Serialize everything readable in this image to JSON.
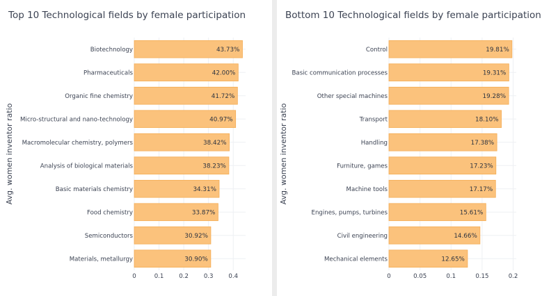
{
  "chart_data": [
    {
      "type": "bar",
      "orientation": "horizontal",
      "title": "Top 10 Technological fields by female participation",
      "ylabel": "Avg. women inventor ratio",
      "xlim": [
        0,
        0.45
      ],
      "xticks": [
        "0",
        "0.1",
        "0.2",
        "0.3",
        "0.4"
      ],
      "xtick_values": [
        0,
        0.1,
        0.2,
        0.3,
        0.4
      ],
      "grid": true,
      "bar_color": "#fbc27c",
      "bar_edge_color": "#f4ac55",
      "categories": [
        "Biotechnology",
        "Pharmaceuticals",
        "Organic fine chemistry",
        "Micro-structural and nano-technology",
        "Macromolecular chemistry, polymers",
        "Analysis of biological materials",
        "Basic materials chemistry",
        "Food chemistry",
        "Semiconductors",
        "Materials, metallurgy"
      ],
      "values": [
        0.4373,
        0.42,
        0.4172,
        0.4097,
        0.3842,
        0.3823,
        0.3431,
        0.3387,
        0.3092,
        0.309
      ],
      "labels": [
        "43.73%",
        "42.00%",
        "41.72%",
        "40.97%",
        "38.42%",
        "38.23%",
        "34.31%",
        "33.87%",
        "30.92%",
        "30.90%"
      ]
    },
    {
      "type": "bar",
      "orientation": "horizontal",
      "title": "Bottom 10 Technological fields by female participation",
      "ylabel": "Avg. women inventor ratio",
      "xlim": [
        0,
        0.205
      ],
      "xticks": [
        "0",
        "0.05",
        "0.1",
        "0.15",
        "0.2"
      ],
      "xtick_values": [
        0,
        0.05,
        0.1,
        0.15,
        0.2
      ],
      "grid": true,
      "bar_color": "#fbc27c",
      "bar_edge_color": "#f4ac55",
      "categories": [
        "Control",
        "Basic communication processes",
        "Other special machines",
        "Transport",
        "Handling",
        "Furniture, games",
        "Machine tools",
        "Engines, pumps, turbines",
        "Civil engineering",
        "Mechanical elements"
      ],
      "values": [
        0.1981,
        0.1931,
        0.1928,
        0.181,
        0.1738,
        0.1723,
        0.1717,
        0.1561,
        0.1466,
        0.1265
      ],
      "labels": [
        "19.81%",
        "19.31%",
        "19.28%",
        "18.10%",
        "17.38%",
        "17.23%",
        "17.17%",
        "15.61%",
        "14.66%",
        "12.65%"
      ]
    }
  ]
}
